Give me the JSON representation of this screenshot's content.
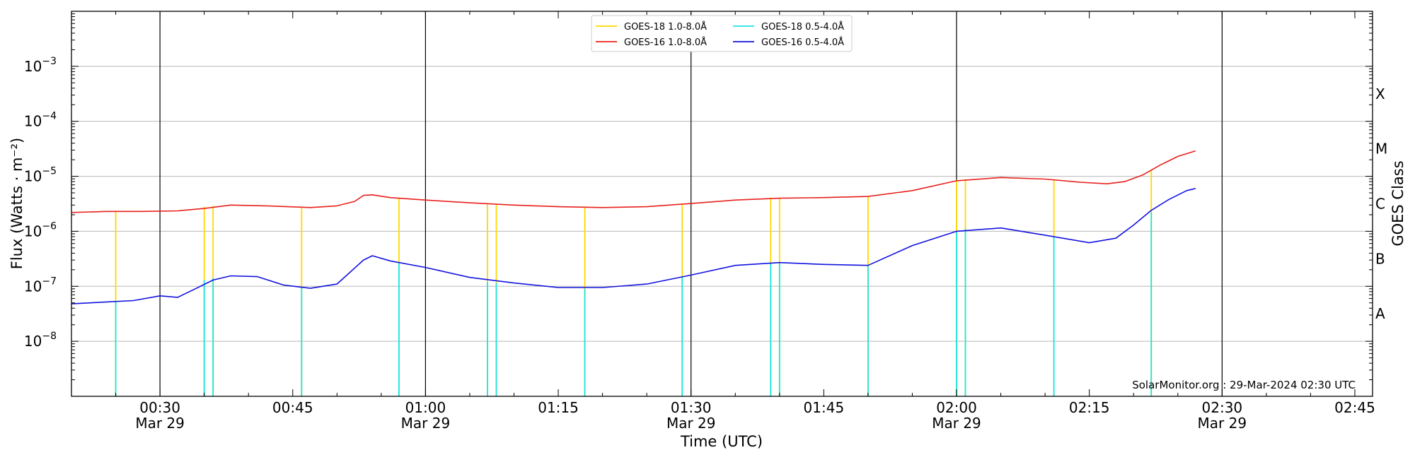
{
  "chart_data": {
    "type": "line",
    "title": "",
    "xlabel": "Time (UTC)",
    "ylabel": "Flux (Watts · m⁻²)",
    "ylabel_right": "GOES Class",
    "y_scale": "log",
    "ylim": [
      1e-09,
      0.01
    ],
    "xlim": [
      "2024-03-29 00:20",
      "2024-03-29 02:47"
    ],
    "grid": "horizontal at decades",
    "legend_position": "top-center",
    "watermark": "SolarMonitor.org : 29-Mar-2024 02:30 UTC",
    "y_ticks": [
      {
        "value": 1e-08,
        "base": "10",
        "exp": "−8"
      },
      {
        "value": 1e-07,
        "base": "10",
        "exp": "−7"
      },
      {
        "value": 1e-06,
        "base": "10",
        "exp": "−6"
      },
      {
        "value": 1e-05,
        "base": "10",
        "exp": "−5"
      },
      {
        "value": 0.0001,
        "base": "10",
        "exp": "−4"
      },
      {
        "value": 0.001,
        "base": "10",
        "exp": "−3"
      }
    ],
    "goes_classes": [
      {
        "label": "A",
        "value": 3.16e-08
      },
      {
        "label": "B",
        "value": 3.16e-07
      },
      {
        "label": "C",
        "value": 3.16e-06
      },
      {
        "label": "M",
        "value": 3.16e-05
      },
      {
        "label": "X",
        "value": 0.000316
      }
    ],
    "x_ticks": [
      {
        "time": "2024-03-29 00:30",
        "label": "00:30",
        "date": "Mar 29"
      },
      {
        "time": "2024-03-29 00:45",
        "label": "00:45",
        "date": ""
      },
      {
        "time": "2024-03-29 01:00",
        "label": "01:00",
        "date": "Mar 29"
      },
      {
        "time": "2024-03-29 01:15",
        "label": "01:15",
        "date": ""
      },
      {
        "time": "2024-03-29 01:30",
        "label": "01:30",
        "date": "Mar 29"
      },
      {
        "time": "2024-03-29 01:45",
        "label": "01:45",
        "date": ""
      },
      {
        "time": "2024-03-29 02:00",
        "label": "02:00",
        "date": "Mar 29"
      },
      {
        "time": "2024-03-29 02:15",
        "label": "02:15",
        "date": ""
      },
      {
        "time": "2024-03-29 02:30",
        "label": "02:30",
        "date": "Mar 29"
      },
      {
        "time": "2024-03-29 02:45",
        "label": "02:45",
        "date": ""
      }
    ],
    "vertical_lines": [
      "2024-03-29 00:30",
      "2024-03-29 01:00",
      "2024-03-29 01:30",
      "2024-03-29 02:00",
      "2024-03-29 02:30"
    ],
    "series": [
      {
        "name": "GOES-18 1.0-8.0Å",
        "color": "#ffd700",
        "style": "spikes",
        "x": [
          "2024-03-29 00:25",
          "2024-03-29 00:35",
          "2024-03-29 00:36",
          "2024-03-29 00:46",
          "2024-03-29 00:57",
          "2024-03-29 01:07",
          "2024-03-29 01:08",
          "2024-03-29 01:18",
          "2024-03-29 01:29",
          "2024-03-29 01:39",
          "2024-03-29 01:40",
          "2024-03-29 01:50",
          "2024-03-29 02:00",
          "2024-03-29 02:01",
          "2024-03-29 02:11",
          "2024-03-29 02:22"
        ],
        "y": [
          2.3e-06,
          2.8e-06,
          2.9e-06,
          2.75e-06,
          4.1e-06,
          3.1e-06,
          3.05e-06,
          2.8e-06,
          3.1e-06,
          4.1e-06,
          4.1e-06,
          4.4e-06,
          8.6e-06,
          8.9e-06,
          8.6e-06,
          1.3e-05
        ]
      },
      {
        "name": "GOES-16 1.0-8.0Å",
        "color": "#e8201c",
        "style": "line",
        "x": [
          "2024-03-29 00:20",
          "2024-03-29 00:24",
          "2024-03-29 00:28",
          "2024-03-29 00:32",
          "2024-03-29 00:35",
          "2024-03-29 00:38",
          "2024-03-29 00:42",
          "2024-03-29 00:47",
          "2024-03-29 00:50",
          "2024-03-29 00:52",
          "2024-03-29 00:53",
          "2024-03-29 00:54",
          "2024-03-29 00:56",
          "2024-03-29 01:00",
          "2024-03-29 01:05",
          "2024-03-29 01:10",
          "2024-03-29 01:15",
          "2024-03-29 01:20",
          "2024-03-29 01:25",
          "2024-03-29 01:30",
          "2024-03-29 01:35",
          "2024-03-29 01:40",
          "2024-03-29 01:45",
          "2024-03-29 01:50",
          "2024-03-29 01:55",
          "2024-03-29 02:00",
          "2024-03-29 02:05",
          "2024-03-29 02:10",
          "2024-03-29 02:14",
          "2024-03-29 02:17",
          "2024-03-29 02:19",
          "2024-03-29 02:21",
          "2024-03-29 02:23",
          "2024-03-29 02:25",
          "2024-03-29 02:27"
        ],
        "y": [
          2.2e-06,
          2.3e-06,
          2.3e-06,
          2.35e-06,
          2.6e-06,
          3e-06,
          2.9e-06,
          2.7e-06,
          2.9e-06,
          3.5e-06,
          4.5e-06,
          4.6e-06,
          4.1e-06,
          3.7e-06,
          3.3e-06,
          3e-06,
          2.8e-06,
          2.7e-06,
          2.8e-06,
          3.2e-06,
          3.7e-06,
          4e-06,
          4.1e-06,
          4.3e-06,
          5.5e-06,
          8.3e-06,
          9.5e-06,
          8.9e-06,
          7.8e-06,
          7.3e-06,
          8e-06,
          1.05e-05,
          1.6e-05,
          2.3e-05,
          2.9e-05
        ]
      },
      {
        "name": "GOES-18 0.5-4.0Å",
        "color": "#19e6e6",
        "style": "spikes",
        "x": [
          "2024-03-29 00:25",
          "2024-03-29 00:35",
          "2024-03-29 00:36",
          "2024-03-29 00:46",
          "2024-03-29 00:57",
          "2024-03-29 01:07",
          "2024-03-29 01:08",
          "2024-03-29 01:18",
          "2024-03-29 01:29",
          "2024-03-29 01:39",
          "2024-03-29 01:40",
          "2024-03-29 01:50",
          "2024-03-29 02:00",
          "2024-03-29 02:01",
          "2024-03-29 02:11",
          "2024-03-29 02:22"
        ],
        "y": [
          5.2e-08,
          1.3e-07,
          1.4e-07,
          9.5e-08,
          2.7e-07,
          1.2e-07,
          1.15e-07,
          9e-08,
          1.5e-07,
          2.7e-07,
          2.6e-07,
          2.4e-07,
          1e-06,
          1.1e-06,
          7.8e-07,
          2.2e-06
        ]
      },
      {
        "name": "GOES-16 0.5-4.0Å",
        "color": "#1212e0",
        "style": "line",
        "x": [
          "2024-03-29 00:20",
          "2024-03-29 00:24",
          "2024-03-29 00:27",
          "2024-03-29 00:30",
          "2024-03-29 00:32",
          "2024-03-29 00:34",
          "2024-03-29 00:36",
          "2024-03-29 00:38",
          "2024-03-29 00:41",
          "2024-03-29 00:44",
          "2024-03-29 00:47",
          "2024-03-29 00:50",
          "2024-03-29 00:53",
          "2024-03-29 00:54",
          "2024-03-29 00:56",
          "2024-03-29 01:00",
          "2024-03-29 01:05",
          "2024-03-29 01:10",
          "2024-03-29 01:15",
          "2024-03-29 01:20",
          "2024-03-29 01:25",
          "2024-03-29 01:30",
          "2024-03-29 01:35",
          "2024-03-29 01:40",
          "2024-03-29 01:45",
          "2024-03-29 01:50",
          "2024-03-29 01:55",
          "2024-03-29 02:00",
          "2024-03-29 02:05",
          "2024-03-29 02:10",
          "2024-03-29 02:15",
          "2024-03-29 02:18",
          "2024-03-29 02:20",
          "2024-03-29 02:22",
          "2024-03-29 02:24",
          "2024-03-29 02:26",
          "2024-03-29 02:27"
        ],
        "y": [
          4.8e-08,
          5.2e-08,
          5.5e-08,
          6.7e-08,
          6.3e-08,
          9e-08,
          1.3e-07,
          1.55e-07,
          1.5e-07,
          1.05e-07,
          9.2e-08,
          1.1e-07,
          3e-07,
          3.6e-07,
          2.9e-07,
          2.2e-07,
          1.45e-07,
          1.15e-07,
          9.5e-08,
          9.5e-08,
          1.1e-07,
          1.6e-07,
          2.4e-07,
          2.7e-07,
          2.5e-07,
          2.4e-07,
          5.5e-07,
          1e-06,
          1.15e-06,
          8.5e-07,
          6.2e-07,
          7.5e-07,
          1.3e-06,
          2.4e-06,
          3.8e-06,
          5.5e-06,
          6e-06
        ]
      }
    ]
  }
}
